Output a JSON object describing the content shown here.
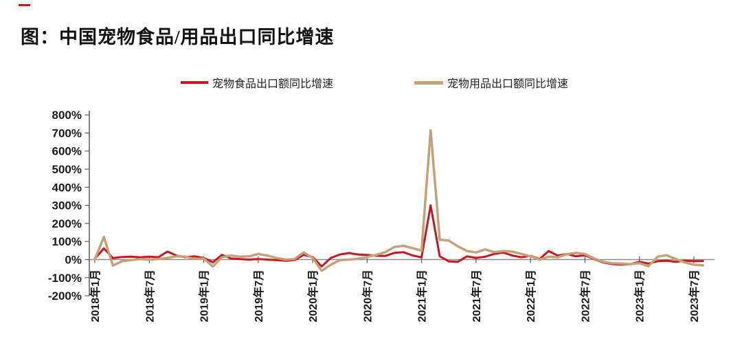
{
  "accent": {
    "dash_color": "#C8161E"
  },
  "chart_data": {
    "type": "line",
    "title": "图：中国宠物食品/用品出口同比增速",
    "x_start": "2018-01",
    "x_end": "2023-08",
    "x_tick_labels": [
      "2018年1月",
      "2018年7月",
      "2019年1月",
      "2019年7月",
      "2020年1月",
      "2020年7月",
      "2021年1月",
      "2021年7月",
      "2022年1月",
      "2022年7月",
      "2023年1月",
      "2023年7月"
    ],
    "y_tick_labels": [
      "800%",
      "700%",
      "600%",
      "500%",
      "400%",
      "300%",
      "200%",
      "100%",
      "0%",
      "-100%",
      "-200%"
    ],
    "ylim": [
      -200,
      800
    ],
    "y_unit": "%",
    "grid": false,
    "legend_position": "top-center",
    "series": [
      {
        "name": "宠物食品出口额同比增速",
        "color": "#C8161E",
        "values": [
          5,
          62,
          8,
          14,
          16,
          12,
          16,
          13,
          44,
          22,
          13,
          18,
          9,
          -15,
          26,
          6,
          3,
          0,
          3,
          0,
          -3,
          -7,
          -3,
          26,
          14,
          -38,
          9,
          28,
          36,
          28,
          26,
          21,
          20,
          37,
          41,
          23,
          12,
          300,
          18,
          -10,
          -12,
          18,
          9,
          16,
          31,
          39,
          22,
          13,
          20,
          3,
          47,
          22,
          31,
          18,
          24,
          3,
          -16,
          -25,
          -28,
          -25,
          -12,
          -22,
          -9,
          -7,
          -12,
          -7,
          -9,
          -8
        ]
      },
      {
        "name": "宠物用品出口额同比增速",
        "color": "#C3A27A",
        "values": [
          0,
          125,
          -33,
          -9,
          -3,
          3,
          0,
          3,
          9,
          18,
          16,
          3,
          6,
          -38,
          13,
          22,
          16,
          18,
          31,
          22,
          9,
          0,
          3,
          40,
          9,
          -62,
          -28,
          -3,
          0,
          5,
          14,
          26,
          41,
          70,
          76,
          63,
          50,
          715,
          110,
          105,
          73,
          47,
          39,
          56,
          41,
          47,
          44,
          31,
          18,
          0,
          16,
          12,
          30,
          37,
          31,
          6,
          -12,
          -20,
          -22,
          -25,
          -20,
          -37,
          16,
          24,
          3,
          -16,
          -28,
          -32
        ]
      }
    ]
  }
}
